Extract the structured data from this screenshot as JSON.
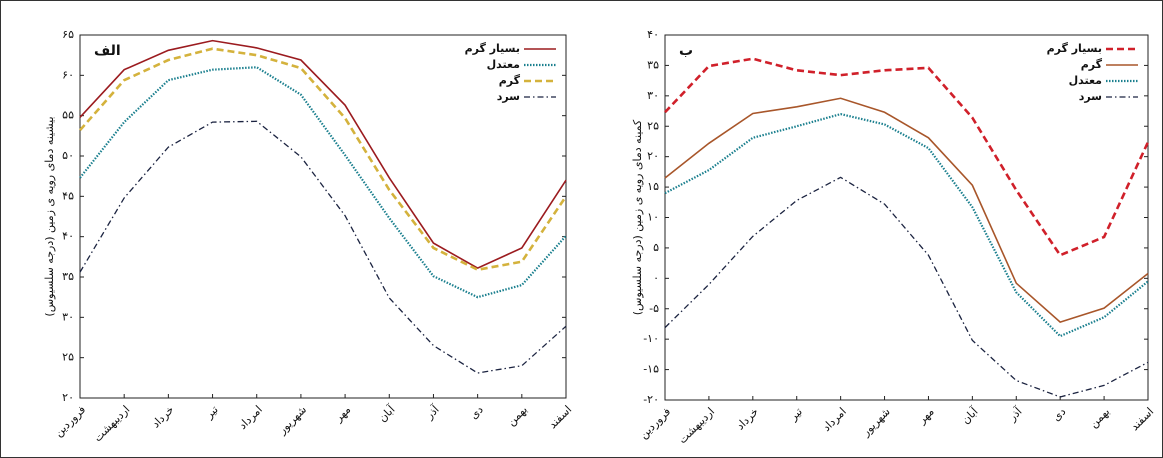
{
  "chart_data": [
    {
      "type": "line",
      "title": "الف",
      "y_label": "بیشینه دمای رویه ی زمین (درجه سلسیوس)",
      "categories": [
        "فروردین",
        "اردیبهشت",
        "خرداد",
        "تیر",
        "امرداد",
        "شهریور",
        "مهر",
        "آبان",
        "آذر",
        "دی",
        "بهمن",
        "اسفند"
      ],
      "series": [
        {
          "name": "بسیار گرم",
          "color": "#9b1b1f",
          "dash": "solid",
          "values": [
            54.8,
            60.7,
            63.1,
            64.3,
            63.4,
            61.9,
            56.3,
            47.3,
            39.2,
            36.1,
            38.6,
            47.0
          ]
        },
        {
          "name": "معتدل",
          "color": "#1a7f8e",
          "dash": "dotted",
          "values": [
            47.3,
            54.2,
            59.4,
            60.7,
            61.0,
            57.6,
            50.1,
            42.3,
            35.1,
            32.5,
            34.0,
            40.1
          ]
        },
        {
          "name": "گرم",
          "color": "#d4b23c",
          "dash": "dashed",
          "values": [
            53.2,
            59.4,
            61.9,
            63.3,
            62.5,
            60.9,
            54.7,
            45.8,
            38.6,
            35.9,
            36.9,
            45.0
          ]
        },
        {
          "name": "سرد",
          "color": "#1b2340",
          "dash": "dashdot",
          "values": [
            35.6,
            44.8,
            51.1,
            54.2,
            54.3,
            49.9,
            42.6,
            32.4,
            26.5,
            23.1,
            24.0,
            28.9
          ]
        }
      ],
      "ylim": [
        20,
        65
      ],
      "yticks": [
        {
          "value": 20,
          "label": "۲۰"
        },
        {
          "value": 25,
          "label": "۲۵"
        },
        {
          "value": 30,
          "label": "۳۰"
        },
        {
          "value": 35,
          "label": "۳۵"
        },
        {
          "value": 40,
          "label": "۴۰"
        },
        {
          "value": 45,
          "label": "۴۵"
        },
        {
          "value": 50,
          "label": "۵۰"
        },
        {
          "value": 55,
          "label": "۵۵"
        },
        {
          "value": 60,
          "label": "۶۰"
        },
        {
          "value": 65,
          "label": "۶۵"
        }
      ],
      "grid": false,
      "legend": "top-right"
    },
    {
      "type": "line",
      "title": "ب",
      "y_label": "کمینه دمای رویه ی زمین (درجه سلسیوس)",
      "categories": [
        "فروردین",
        "اردیبهشت",
        "خرداد",
        "تیر",
        "امرداد",
        "شهریور",
        "مهر",
        "آبان",
        "آذر",
        "دی",
        "بهمن",
        "اسفند"
      ],
      "series": [
        {
          "name": "بسیار گرم",
          "color": "#d0202a",
          "dash": "dashed",
          "values": [
            27.3,
            34.9,
            36.1,
            34.2,
            33.4,
            34.2,
            34.6,
            26.4,
            14.5,
            3.8,
            6.8,
            22.4
          ]
        },
        {
          "name": "گرم",
          "color": "#a8562a",
          "dash": "solid",
          "values": [
            16.5,
            22.2,
            27.1,
            28.2,
            29.6,
            27.3,
            23.1,
            15.3,
            -0.8,
            -7.2,
            -4.9,
            0.8
          ]
        },
        {
          "name": "معتدل",
          "color": "#1a7f8e",
          "dash": "dotted",
          "values": [
            14.0,
            17.8,
            23.1,
            25.0,
            27.0,
            25.3,
            21.4,
            11.7,
            -2.3,
            -9.5,
            -6.4,
            -0.5
          ]
        },
        {
          "name": "سرد",
          "color": "#1b2340",
          "dash": "dashdot",
          "values": [
            -8.1,
            -1.0,
            6.9,
            12.8,
            16.6,
            12.2,
            3.8,
            -10.2,
            -16.8,
            -19.5,
            -17.6,
            -13.8
          ]
        }
      ],
      "ylim": [
        -20,
        40
      ],
      "yticks": [
        {
          "value": -20,
          "label": "-۲۰"
        },
        {
          "value": -15,
          "label": "-۱۵"
        },
        {
          "value": -10,
          "label": "-۱۰"
        },
        {
          "value": -5,
          "label": "-۵"
        },
        {
          "value": 0,
          "label": "۰"
        },
        {
          "value": 5,
          "label": "۵"
        },
        {
          "value": 10,
          "label": "۱۰"
        },
        {
          "value": 15,
          "label": "۱۵"
        },
        {
          "value": 20,
          "label": "۲۰"
        },
        {
          "value": 25,
          "label": "۲۵"
        },
        {
          "value": 30,
          "label": "۳۰"
        },
        {
          "value": 35,
          "label": "۳۵"
        },
        {
          "value": 40,
          "label": "۴۰"
        }
      ],
      "grid": false,
      "legend": "top-right"
    }
  ]
}
